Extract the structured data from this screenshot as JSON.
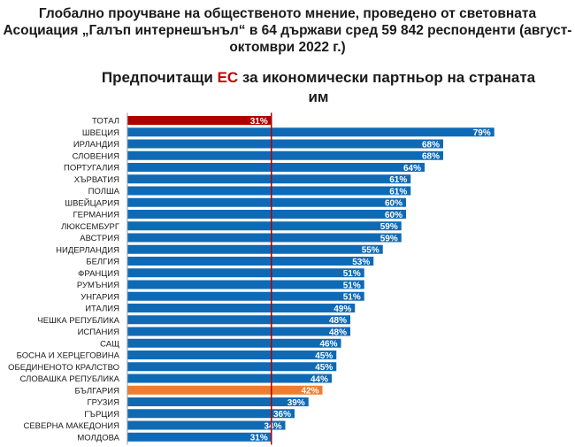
{
  "header": {
    "line1": "Глобално проучване на общественото мнение, проведено от световната",
    "line2": "Асоциация „Галъп интернешънъл“ в 64 държави сред 59 842 респонденти (август-",
    "line3": "октомври 2022 г.)"
  },
  "chart_title": {
    "prefix": "Предпочитащи ",
    "highlight": "ЕС",
    "suffix": " за икономически партньор на страната",
    "line2": "им"
  },
  "colors": {
    "bar": "#0f6ab5",
    "total": "#b00000",
    "highlight": "#ed7d31",
    "reference_line": "#b00000",
    "title_highlight": "#c00000"
  },
  "chart_data": {
    "type": "bar",
    "orientation": "horizontal",
    "title": "Предпочитащи ЕС за икономически партньор на страната им",
    "unit": "%",
    "categories": [
      "ТОТАЛ",
      "ШВЕЦИЯ",
      "ИРЛАНДИЯ",
      "СЛОВЕНИЯ",
      "ПОРТУГАЛИЯ",
      "ХЪРВАТИЯ",
      "ПОЛША",
      "ШВЕЙЦАРИЯ",
      "ГЕРМАНИЯ",
      "ЛЮКСЕМБУРГ",
      "АВСТРИЯ",
      "НИДЕРЛАНДИЯ",
      "БЕЛГИЯ",
      "ФРАНЦИЯ",
      "РУМЪНИЯ",
      "УНГАРИЯ",
      "ИТАЛИЯ",
      "ЧЕШКА РЕПУБЛИКА",
      "ИСПАНИЯ",
      "САЩ",
      "БОСНА И ХЕРЦЕГОВИНА",
      "ОБЕДИНЕНОТО КРАЛСТВО",
      "СЛОВАШКА РЕПУБЛИКА",
      "БЪЛГАРИЯ",
      "ГРУЗИЯ",
      "ГЪРЦИЯ",
      "СЕВЕРНА МАКЕДОНИЯ",
      "МОЛДОВА"
    ],
    "values": [
      31,
      79,
      68,
      68,
      64,
      61,
      61,
      60,
      60,
      59,
      59,
      55,
      53,
      51,
      51,
      51,
      49,
      48,
      48,
      46,
      45,
      45,
      44,
      42,
      39,
      36,
      34,
      31
    ],
    "value_labels": [
      "31%",
      "79%",
      "68%",
      "68%",
      "64%",
      "61%",
      "61%",
      "60%",
      "60%",
      "59%",
      "59%",
      "55%",
      "53%",
      "51%",
      "51%",
      "51%",
      "49%",
      "48%",
      "48%",
      "46%",
      "45%",
      "45%",
      "44%",
      "42%",
      "39%",
      "36%",
      "34%",
      "31%"
    ],
    "highlighted": {
      "ТОТАЛ": "total",
      "БЪЛГАРИЯ": "highlight"
    },
    "reference_line_value": 31,
    "xlim": [
      0,
      80
    ],
    "grid": false
  }
}
